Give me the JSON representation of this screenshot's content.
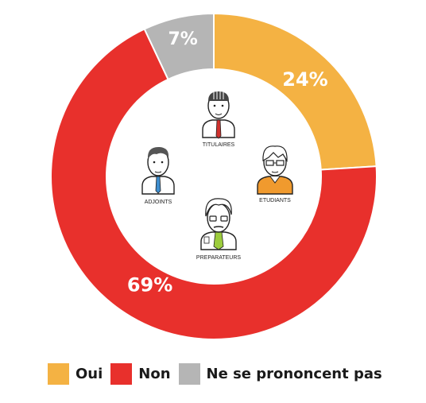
{
  "chart_data": {
    "type": "pie",
    "variant": "donut",
    "categories": [
      "Oui",
      "Non",
      "Ne se prononcent pas"
    ],
    "values": [
      24,
      69,
      7
    ],
    "data_labels": [
      "24%",
      "69%",
      "7%"
    ],
    "colors": [
      "#f4b243",
      "#e8302c",
      "#b5b5b5"
    ],
    "legend_position": "bottom",
    "center_figures": [
      {
        "label": "TITULAIRES",
        "icon": "professor-icon"
      },
      {
        "label": "ETUDIANTS",
        "icon": "student-icon"
      },
      {
        "label": "ADJOINTS",
        "icon": "assistant-icon"
      },
      {
        "label": "PREPARATEURS",
        "icon": "preparator-icon"
      }
    ]
  }
}
